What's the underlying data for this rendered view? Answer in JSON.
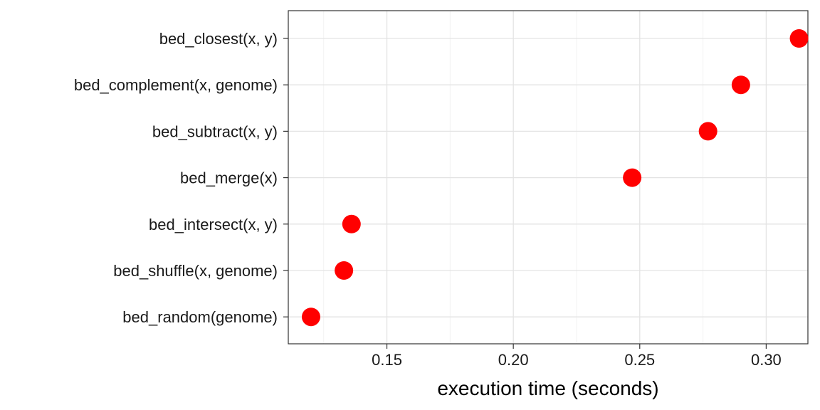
{
  "chart_data": {
    "type": "scatter",
    "title": "",
    "xlabel": "execution time (seconds)",
    "ylabel": "",
    "xlim": [
      0.111,
      0.3165
    ],
    "xticks": [
      0.15,
      0.2,
      0.25,
      0.3
    ],
    "xtick_labels": [
      "0.15",
      "0.20",
      "0.25",
      "0.30"
    ],
    "categories": [
      "bed_closest(x, y)",
      "bed_complement(x, genome)",
      "bed_subtract(x, y)",
      "bed_merge(x)",
      "bed_intersect(x, y)",
      "bed_shuffle(x, genome)",
      "bed_random(genome)"
    ],
    "values": [
      0.313,
      0.29,
      0.277,
      0.247,
      0.136,
      0.133,
      0.12
    ],
    "point_color": "#ff0000",
    "grid": true,
    "legend": "none"
  }
}
